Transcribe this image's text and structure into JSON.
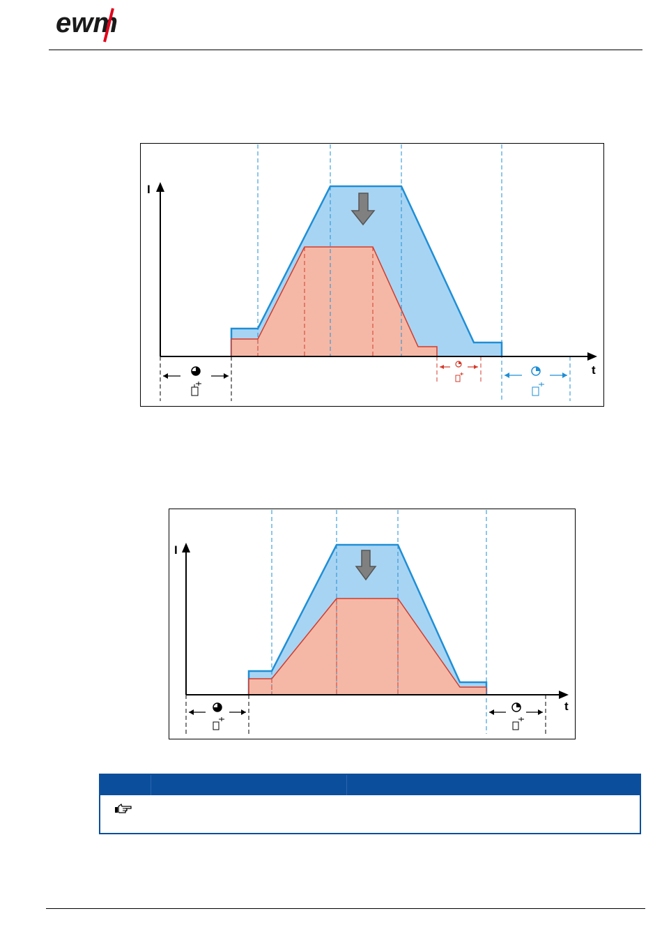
{
  "header": {
    "brand": "ewm"
  },
  "diagram_1": {
    "y_axis_label": "I",
    "x_axis_label": "t"
  },
  "diagram_2": {
    "y_axis_label": "I",
    "x_axis_label": "t"
  },
  "colors": {
    "brand_red": "#e2001a",
    "program_blue": "#1e8fd6",
    "program_blue_fill": "#a8d4f3",
    "reduced_red": "#d43a2a",
    "reduced_red_fill": "#f5b8a6",
    "note_bar": "#0b4f9c"
  },
  "icons": [
    "gas-pre-flow-icon",
    "gas-post-flow-icon",
    "down-arrow-icon",
    "pointing-hand-icon"
  ]
}
